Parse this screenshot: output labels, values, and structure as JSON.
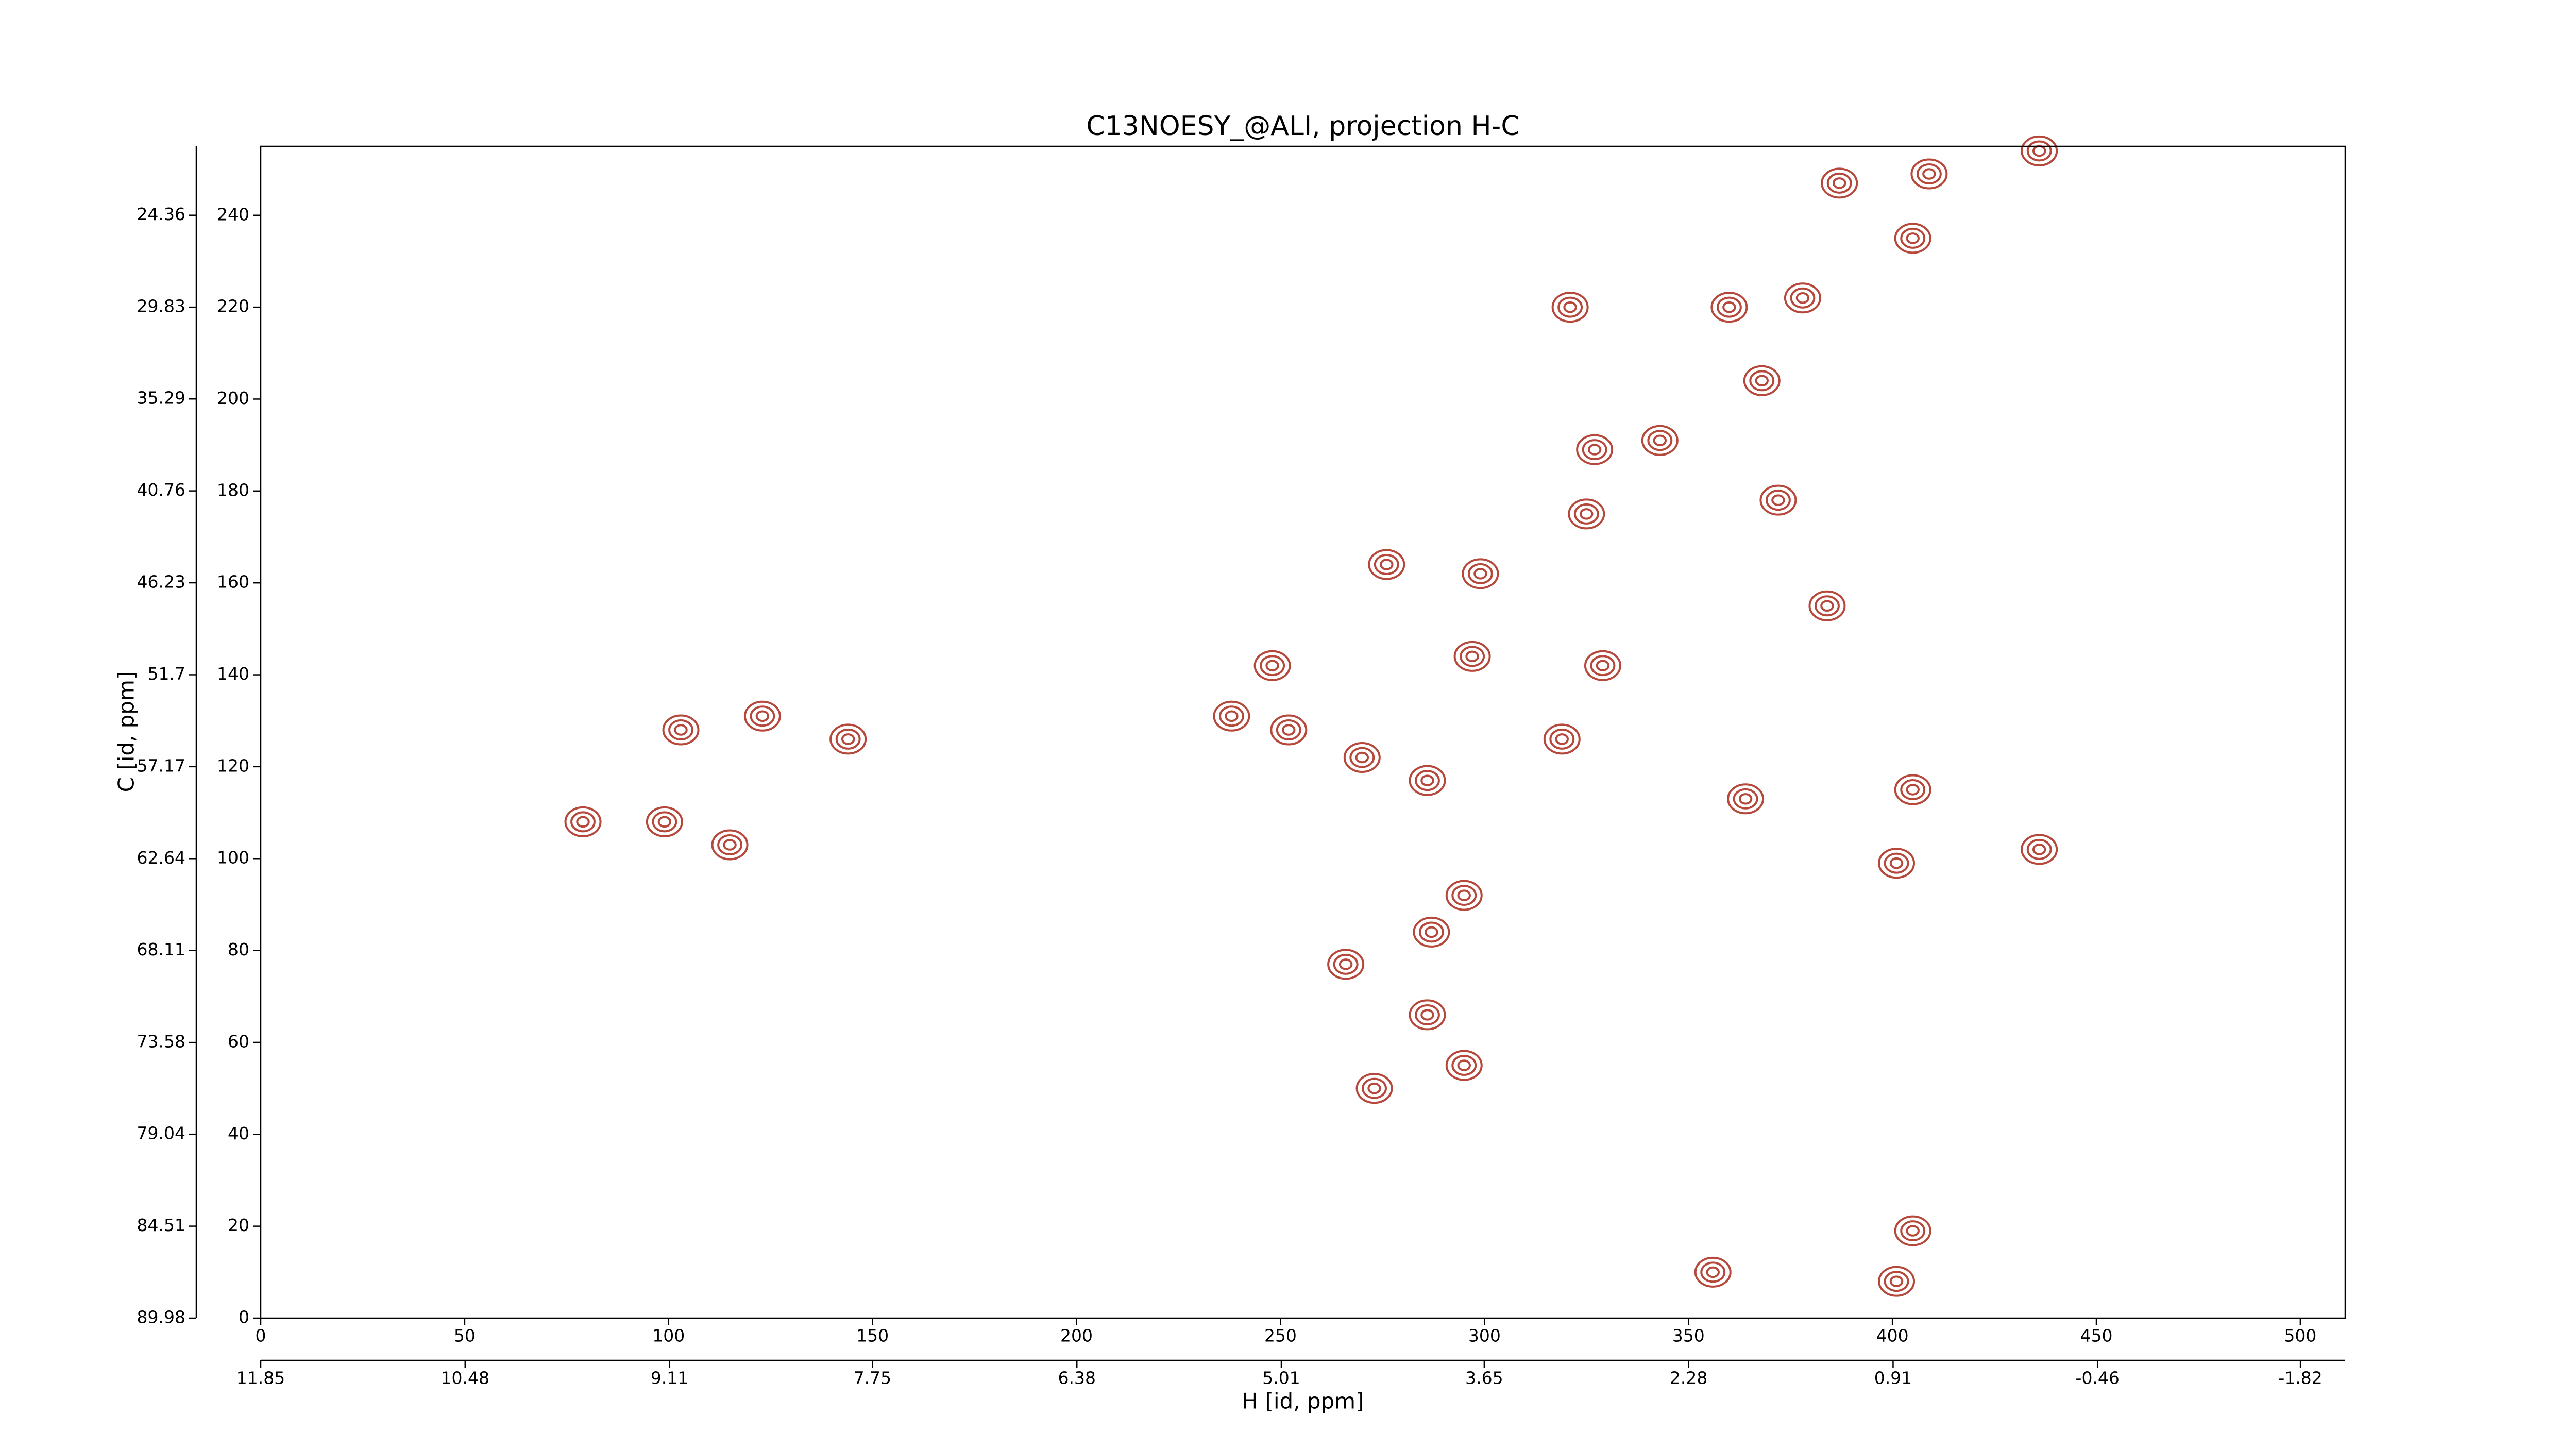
{
  "chart_data": {
    "type": "contour",
    "title": "C13NOESY_@ALI, projection H-C",
    "xlabel": "H [id, ppm]",
    "ylabel": "C [id, ppm]",
    "xlim": [
      0,
      511
    ],
    "xticks": [
      0,
      50,
      100,
      150,
      200,
      250,
      300,
      350,
      400,
      450,
      500
    ],
    "ylim": [
      0,
      255
    ],
    "yticks": [
      0,
      20,
      40,
      60,
      80,
      100,
      120,
      140,
      160,
      180,
      200,
      220,
      240
    ],
    "x2lim": [
      11.85,
      -2.12
    ],
    "x2ticks": [
      11.85,
      10.48,
      9.11,
      7.75,
      6.38,
      5.01,
      3.65,
      2.28,
      0.91,
      -0.46,
      -1.82
    ],
    "y2lim": [
      89.98,
      20.26
    ],
    "y2ticks": [
      89.98,
      84.51,
      79.04,
      73.58,
      68.11,
      62.64,
      57.17,
      51.7,
      46.23,
      40.76,
      35.29,
      29.83,
      24.36
    ],
    "series": [
      {
        "color": "#b5483b",
        "x": [
          387,
          409,
          405,
          378,
          360,
          368,
          343,
          321,
          327,
          325,
          299,
          276,
          297,
          248,
          238,
          252,
          270,
          286,
          295,
          287,
          266,
          286,
          295,
          273,
          329,
          319,
          372,
          384,
          364,
          405,
          401,
          405,
          401,
          356,
          103,
          123,
          99,
          115,
          79,
          144,
          436,
          436
        ],
        "values": [
          247,
          249,
          235,
          222,
          220,
          204,
          191,
          220,
          189,
          175,
          162,
          164,
          144,
          142,
          131,
          128,
          122,
          117,
          92,
          84,
          77,
          66,
          55,
          50,
          142,
          126,
          178,
          155,
          113,
          115,
          99,
          19,
          8,
          10,
          128,
          131,
          108,
          103,
          108,
          126,
          254,
          102
        ]
      }
    ]
  }
}
